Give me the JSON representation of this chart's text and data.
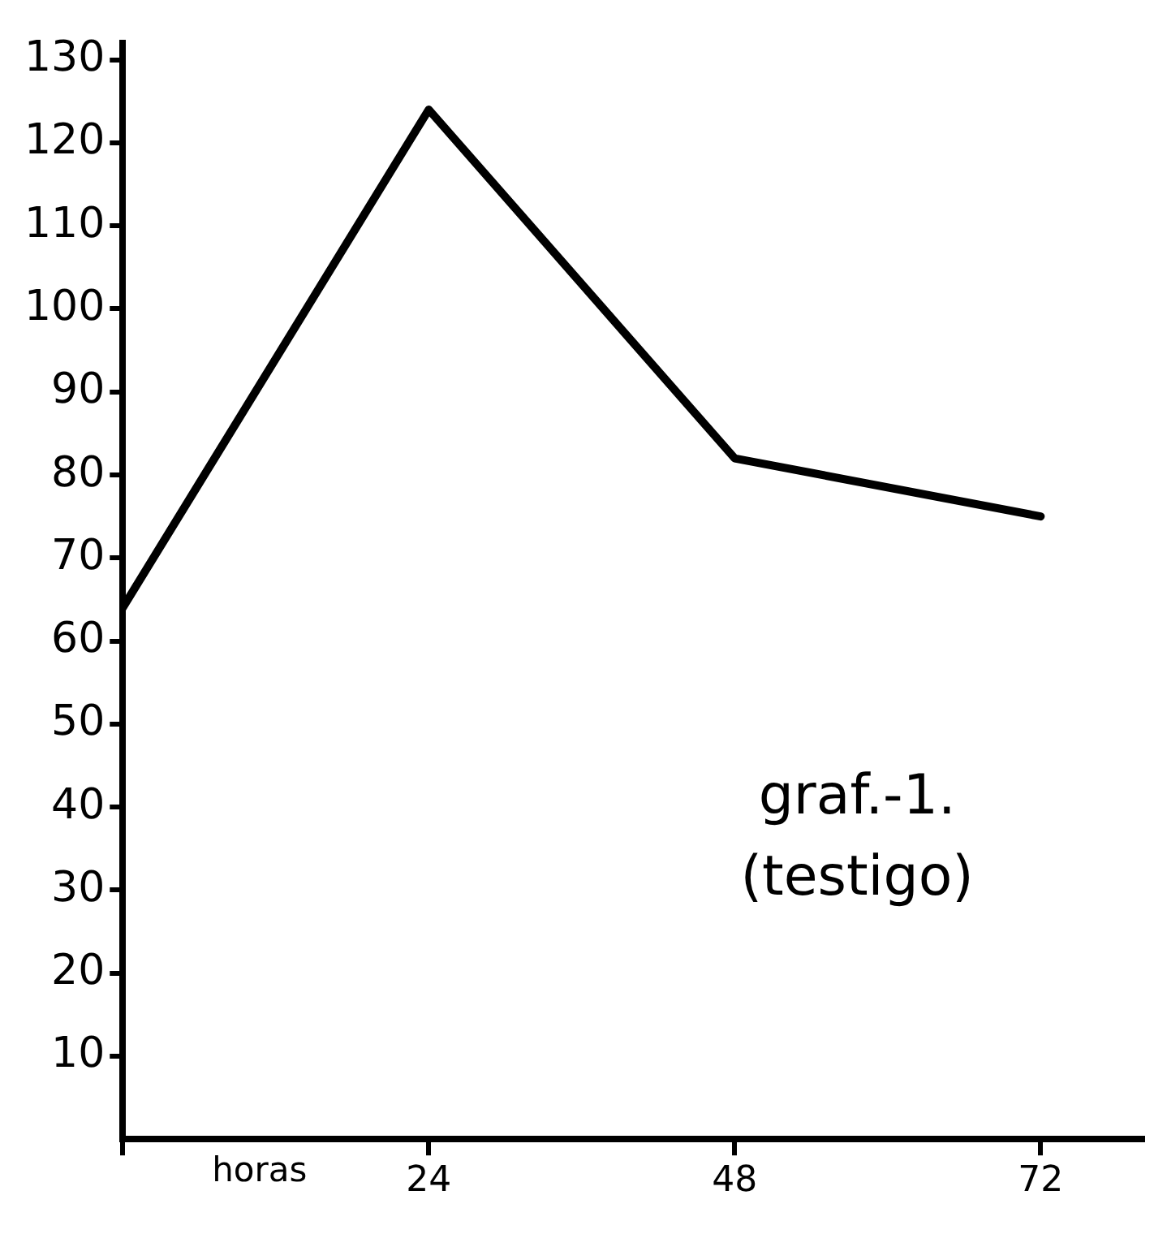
{
  "chart_data": {
    "type": "line",
    "xlabel": "horas",
    "x": [
      0,
      24,
      48,
      72
    ],
    "values": [
      64,
      124,
      82,
      75
    ],
    "color": "#000000",
    "xlim": [
      0,
      80
    ],
    "xticks": [
      {
        "value": 0,
        "label": null
      },
      24,
      48,
      72
    ],
    "ylim": [
      0,
      132
    ],
    "yticks": [
      10,
      20,
      30,
      40,
      50,
      60,
      70,
      80,
      90,
      100,
      110,
      120,
      130
    ],
    "grid": false,
    "legend": false,
    "marker": "none",
    "line_style": "solid",
    "annotations": [
      {
        "text": "graf.-1."
      },
      {
        "text": "(testigo)"
      }
    ]
  }
}
